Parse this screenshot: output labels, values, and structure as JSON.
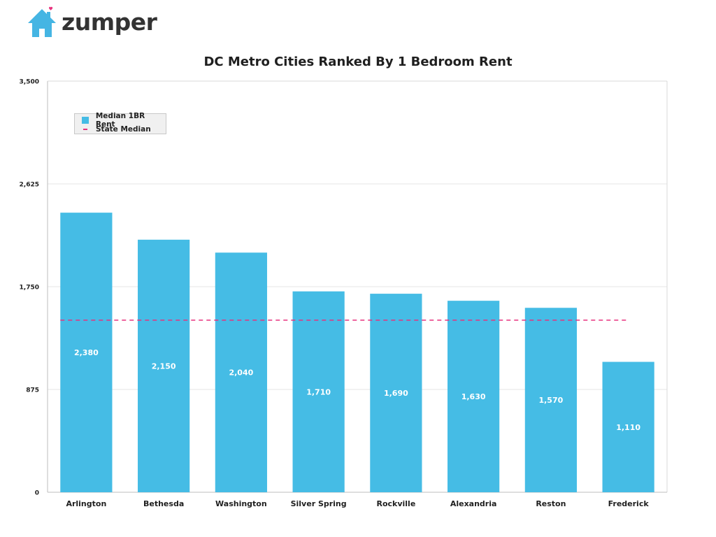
{
  "logo": {
    "text": "zumper",
    "icon": "house-icon",
    "house_color": "#45B5E3",
    "heart_color": "#E8327E"
  },
  "chart_data": {
    "type": "bar",
    "title": "DC Metro Cities Ranked By 1 Bedroom Rent",
    "xlabel": "",
    "ylabel": "",
    "categories": [
      "Arlington",
      "Bethesda",
      "Washington",
      "Silver Spring",
      "Rockville",
      "Alexandria",
      "Reston",
      "Frederick"
    ],
    "series": [
      {
        "name": "Median 1BR Rent",
        "values": [
          2380,
          2150,
          2040,
          1710,
          1690,
          1630,
          1570,
          1110
        ],
        "data_labels": [
          "2,380",
          "2,150",
          "2,040",
          "1,710",
          "1,690",
          "1,630",
          "1,570",
          "1,110"
        ],
        "color": "#45BCE5"
      }
    ],
    "reference_line": {
      "name": "State Median",
      "value": 1465,
      "color": "#E8327E",
      "style": "dashed"
    },
    "ylim": [
      0,
      3500
    ],
    "yticks": [
      0,
      875,
      1750,
      2625,
      3500
    ],
    "ytick_labels": [
      "0",
      "875",
      "1,750",
      "2,625",
      "3,500"
    ],
    "grid": true,
    "legend_position": "top-left"
  }
}
